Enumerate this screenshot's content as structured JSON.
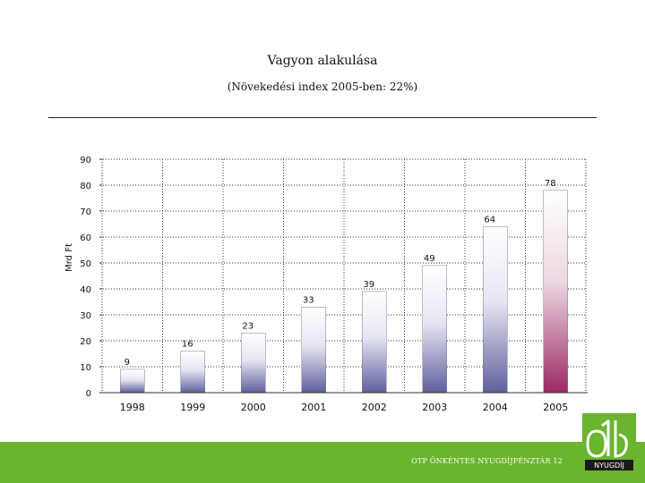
{
  "header": {
    "title": "Vagyon alakulása",
    "subtitle": "(Növekedési index 2005-ben: 22%)"
  },
  "footer": {
    "text": "OTP ÖNKÉNTES NYUGDÍJPÉNZTÁR 12",
    "logo_text": "NYUGDÍJ",
    "color": "#6ab42e"
  },
  "chart_data": {
    "type": "bar",
    "ylabel": "Mrd Ft",
    "categories": [
      "1998",
      "1999",
      "2000",
      "2001",
      "2002",
      "2003",
      "2004",
      "2005"
    ],
    "values": [
      9,
      16,
      23,
      33,
      39,
      49,
      64,
      78
    ],
    "data_labels": [
      "9",
      "16",
      "23",
      "33",
      "39",
      "49",
      "64",
      "78"
    ],
    "ylim": [
      0,
      90
    ],
    "yticks": [
      "0",
      "10",
      "20",
      "30",
      "40",
      "50",
      "60",
      "70",
      "80",
      "90"
    ],
    "grid": true,
    "bar_colors": {
      "default": "#5f5f9e",
      "highlight": "#9a2a62"
    },
    "highlight_category": "2005"
  }
}
